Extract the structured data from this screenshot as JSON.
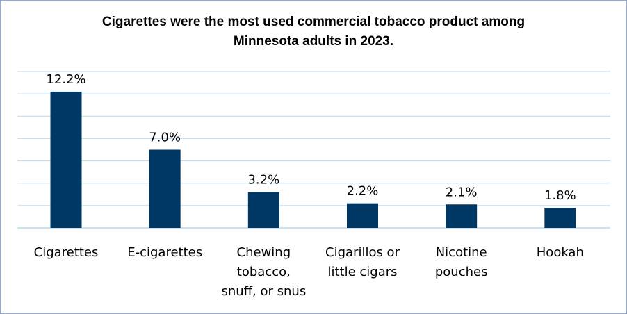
{
  "chart_data": {
    "type": "bar",
    "title_lines": [
      "Cigarettes were the most used commercial tobacco product among",
      "Minnesota adults in 2023."
    ],
    "categories": [
      [
        "Cigarettes"
      ],
      [
        "E-cigarettes"
      ],
      [
        "Chewing",
        "tobacco,",
        "snuff, or snus"
      ],
      [
        "Cigarillos or",
        "little cigars"
      ],
      [
        "Nicotine",
        "pouches"
      ],
      [
        "Hookah"
      ]
    ],
    "values": [
      12.2,
      7.0,
      3.2,
      2.2,
      2.1,
      1.8
    ],
    "data_labels": [
      "12.2%",
      "7.0%",
      "3.2%",
      "2.2%",
      "2.1%",
      "1.8%"
    ],
    "ylim": [
      0,
      14
    ],
    "grid": true,
    "colors": {
      "bar": "#003865",
      "grid": "#b4dbee",
      "border": "#8faadc"
    }
  }
}
